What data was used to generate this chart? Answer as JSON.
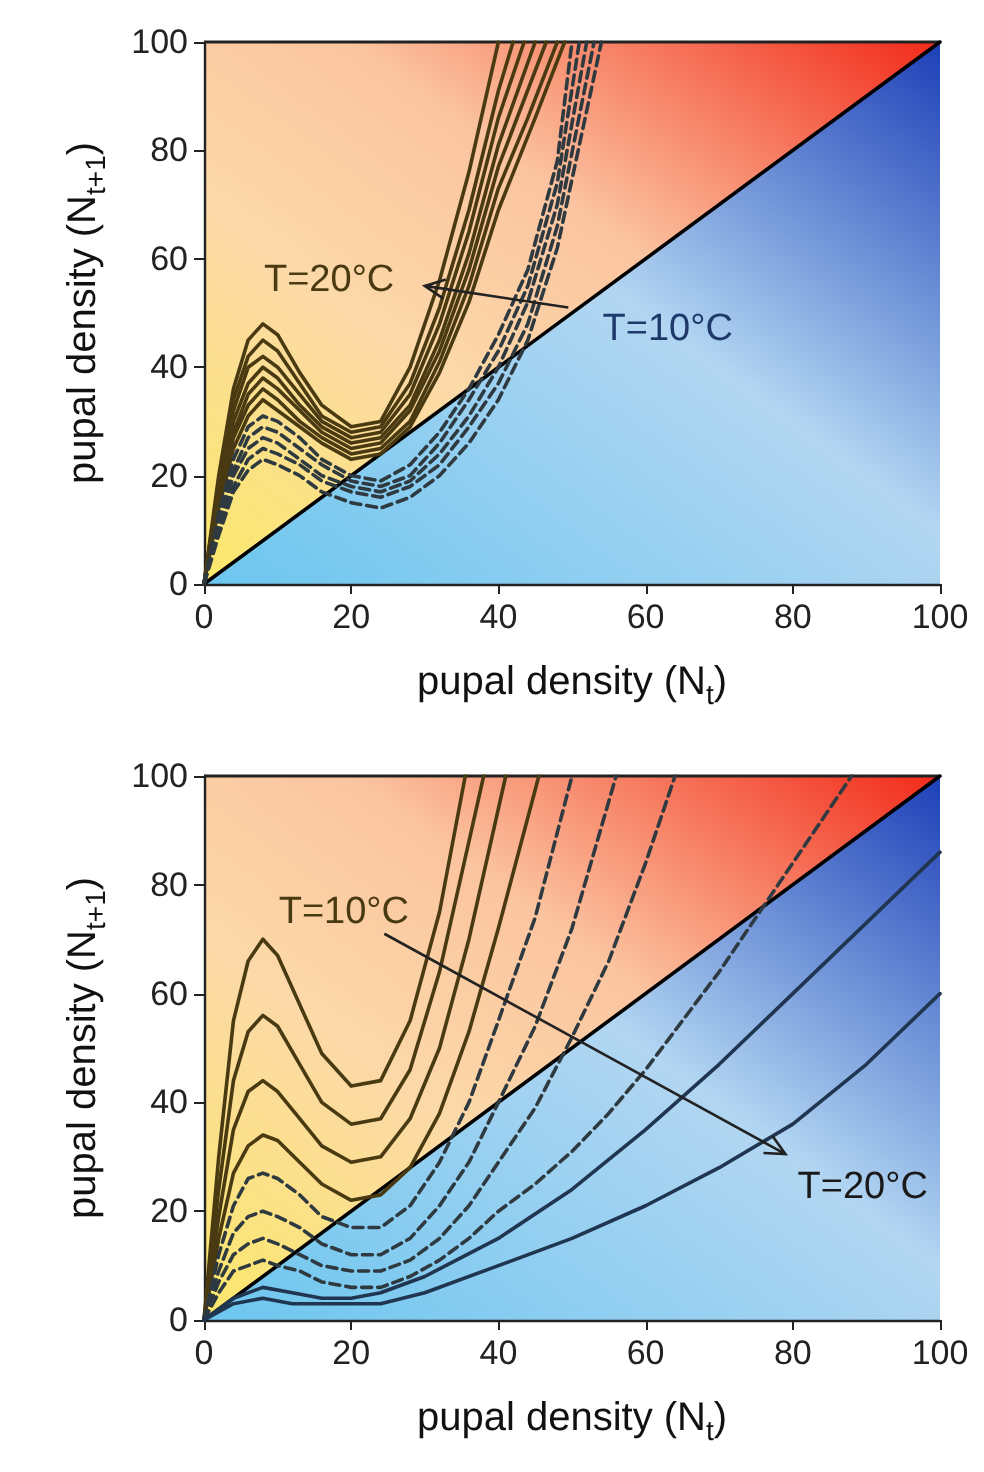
{
  "chart_data": [
    {
      "type": "line",
      "xlabel": "pupal density (N$_{t}$)",
      "ylabel": "pupal density (N$_{t+1}$)",
      "xlim": [
        0,
        100
      ],
      "ylim": [
        0,
        100
      ],
      "xticks": [
        0,
        20,
        40,
        60,
        80,
        100
      ],
      "yticks": [
        0,
        20,
        40,
        60,
        80,
        100
      ],
      "grid": false,
      "marker": "none",
      "annotations": [
        {
          "text": "T=20°C",
          "x": 30,
          "y": 55
        },
        {
          "text": "T=10°C",
          "x": 49.5,
          "y": 51
        }
      ],
      "series": [
        {
          "color": "#000000",
          "x": [
            0,
            100
          ],
          "values": [
            0,
            100
          ]
        },
        {
          "color": "#4a3a12",
          "x": [
            0,
            2,
            4,
            6,
            8,
            10,
            13,
            16,
            20,
            24,
            28,
            32,
            36,
            40
          ],
          "values": [
            0,
            20,
            36,
            45,
            48,
            46,
            39,
            33,
            29,
            30,
            40,
            56,
            76,
            100
          ]
        },
        {
          "color": "#4a3a12",
          "x": [
            0,
            2,
            4,
            6,
            8,
            10,
            13,
            16,
            20,
            24,
            28,
            32,
            36,
            40,
            42
          ],
          "values": [
            0,
            19,
            34,
            42,
            45,
            43,
            37,
            31,
            28,
            29,
            37,
            51,
            69,
            91,
            100
          ]
        },
        {
          "color": "#4a3a12",
          "x": [
            0,
            2,
            4,
            6,
            8,
            10,
            13,
            16,
            20,
            24,
            28,
            32,
            36,
            40,
            43.5
          ],
          "values": [
            0,
            18,
            32,
            40,
            42,
            40,
            35,
            30,
            27,
            28,
            35,
            48,
            65,
            86,
            100
          ]
        },
        {
          "color": "#4a3a12",
          "x": [
            0,
            2,
            4,
            6,
            8,
            10,
            13,
            16,
            20,
            24,
            28,
            32,
            36,
            40,
            45
          ],
          "values": [
            0,
            17,
            30,
            37,
            40,
            38,
            33,
            29,
            26,
            27,
            33,
            45,
            61,
            81,
            100
          ]
        },
        {
          "color": "#4a3a12",
          "x": [
            0,
            2,
            4,
            6,
            8,
            10,
            13,
            16,
            20,
            24,
            28,
            32,
            36,
            40,
            46.5
          ],
          "values": [
            0,
            16,
            28,
            35,
            38,
            36,
            32,
            28,
            25,
            26,
            32,
            43,
            58,
            77,
            100
          ]
        },
        {
          "color": "#4a3a12",
          "x": [
            0,
            2,
            4,
            6,
            8,
            10,
            13,
            16,
            20,
            24,
            28,
            32,
            36,
            40,
            44,
            48
          ],
          "values": [
            0,
            15,
            27,
            33,
            36,
            34,
            30,
            27,
            24,
            25,
            30,
            41,
            55,
            73,
            86,
            100
          ]
        },
        {
          "color": "#4a3a12",
          "x": [
            0,
            2,
            4,
            6,
            8,
            10,
            13,
            16,
            20,
            24,
            28,
            32,
            36,
            40,
            45,
            49
          ],
          "values": [
            0,
            14,
            25,
            31,
            34,
            32,
            29,
            26,
            23,
            24,
            29,
            39,
            52,
            69,
            86,
            100
          ]
        },
        {
          "color": "#2e3a40",
          "line_style": "dashed",
          "x": [
            0,
            2,
            4,
            6,
            8,
            10,
            13,
            16,
            20,
            24,
            28,
            32,
            36,
            40,
            44,
            48,
            50
          ],
          "values": [
            0,
            13,
            23,
            29,
            31,
            30,
            27,
            23,
            20,
            19,
            22,
            28,
            36,
            46,
            58,
            78,
            100
          ]
        },
        {
          "color": "#2e3a40",
          "line_style": "dashed",
          "x": [
            0,
            2,
            4,
            6,
            8,
            10,
            13,
            16,
            20,
            24,
            28,
            32,
            36,
            40,
            44,
            48,
            51
          ],
          "values": [
            0,
            12,
            21,
            27,
            29,
            28,
            25,
            22,
            19,
            18,
            20,
            26,
            34,
            43,
            55,
            74,
            100
          ]
        },
        {
          "color": "#2e3a40",
          "line_style": "dashed",
          "x": [
            0,
            2,
            4,
            6,
            8,
            10,
            13,
            16,
            20,
            24,
            28,
            32,
            36,
            40,
            44,
            48,
            52
          ],
          "values": [
            0,
            11,
            20,
            25,
            27,
            26,
            23,
            20,
            18,
            17,
            19,
            24,
            31,
            40,
            52,
            70,
            100
          ]
        },
        {
          "color": "#2e3a40",
          "line_style": "dashed",
          "x": [
            0,
            2,
            4,
            6,
            8,
            10,
            13,
            16,
            20,
            24,
            28,
            32,
            36,
            40,
            44,
            48,
            53
          ],
          "values": [
            0,
            10,
            18,
            23,
            25,
            24,
            22,
            19,
            17,
            16,
            18,
            22,
            29,
            37,
            48,
            66,
            100
          ]
        },
        {
          "color": "#2e3a40",
          "line_style": "dashed",
          "x": [
            0,
            2,
            4,
            6,
            8,
            10,
            13,
            16,
            20,
            24,
            28,
            32,
            36,
            40,
            44,
            48,
            54
          ],
          "values": [
            0,
            9,
            17,
            21,
            23,
            22,
            20,
            17,
            15,
            14,
            16,
            20,
            26,
            34,
            45,
            62,
            100
          ]
        }
      ]
    },
    {
      "type": "line",
      "xlabel": "pupal density (N$_{t}$)",
      "ylabel": "pupal density (N$_{t+1}$)",
      "xlim": [
        0,
        100
      ],
      "ylim": [
        0,
        100
      ],
      "xticks": [
        0,
        20,
        40,
        60,
        80,
        100
      ],
      "yticks": [
        0,
        20,
        40,
        60,
        80,
        100
      ],
      "grid": false,
      "marker": "none",
      "annotations": [
        "T=10°C",
        "T=20°C"
      ],
      "series": [
        {
          "color": "#000000",
          "x": [
            0,
            100
          ],
          "values": [
            0,
            100
          ]
        },
        {
          "color": "#4a3a12",
          "x": [
            0,
            2,
            4,
            6,
            8,
            10,
            13,
            16,
            20,
            24,
            28,
            32,
            35.5
          ],
          "values": [
            0,
            30,
            55,
            66,
            70,
            67,
            58,
            49,
            43,
            44,
            55,
            75,
            100
          ]
        },
        {
          "color": "#4a3a12",
          "x": [
            0,
            2,
            4,
            6,
            8,
            10,
            13,
            16,
            20,
            24,
            28,
            32,
            36,
            38
          ],
          "values": [
            0,
            24,
            44,
            53,
            56,
            54,
            47,
            40,
            36,
            37,
            46,
            64,
            88,
            100
          ]
        },
        {
          "color": "#4a3a12",
          "x": [
            0,
            2,
            4,
            6,
            8,
            10,
            13,
            16,
            20,
            24,
            28,
            32,
            36,
            41
          ],
          "values": [
            0,
            19,
            35,
            42,
            44,
            42,
            37,
            32,
            29,
            30,
            37,
            50,
            70,
            100
          ]
        },
        {
          "color": "#4a3a12",
          "x": [
            0,
            2,
            4,
            6,
            8,
            10,
            13,
            16,
            20,
            24,
            28,
            32,
            36,
            40,
            45.5
          ],
          "values": [
            0,
            15,
            27,
            32,
            34,
            33,
            29,
            25,
            22,
            23,
            28,
            38,
            53,
            72,
            100
          ]
        },
        {
          "color": "#2e3a40",
          "line_style": "dashed",
          "x": [
            0,
            2,
            4,
            6,
            8,
            10,
            13,
            16,
            20,
            24,
            28,
            32,
            36,
            40,
            45,
            50
          ],
          "values": [
            0,
            12,
            21,
            26,
            27,
            26,
            23,
            19,
            17,
            17,
            21,
            29,
            40,
            55,
            74,
            100
          ]
        },
        {
          "color": "#2e3a40",
          "line_style": "dashed",
          "x": [
            0,
            2,
            4,
            6,
            8,
            10,
            13,
            16,
            20,
            24,
            28,
            32,
            36,
            40,
            45,
            50,
            56
          ],
          "values": [
            0,
            9,
            16,
            19,
            20,
            19,
            17,
            14,
            12,
            12,
            15,
            21,
            29,
            40,
            54,
            72,
            100
          ]
        },
        {
          "color": "#2e3a40",
          "line_style": "dashed",
          "x": [
            0,
            2,
            4,
            6,
            8,
            10,
            13,
            16,
            20,
            24,
            28,
            32,
            36,
            40,
            45,
            50,
            55,
            60,
            64
          ],
          "values": [
            0,
            7,
            12,
            14,
            15,
            14,
            12,
            10,
            9,
            9,
            11,
            15,
            21,
            29,
            39,
            52,
            66,
            84,
            100
          ]
        },
        {
          "color": "#2e3a40",
          "line_style": "dashed",
          "x": [
            0,
            2,
            4,
            6,
            8,
            10,
            13,
            16,
            20,
            24,
            28,
            32,
            36,
            40,
            45,
            50,
            55,
            60,
            65,
            70,
            76,
            82,
            88
          ],
          "values": [
            0,
            5,
            9,
            10,
            11,
            10,
            9,
            7,
            6,
            6,
            8,
            11,
            15,
            20,
            25,
            31,
            38,
            46,
            55,
            64,
            76,
            88,
            100
          ]
        },
        {
          "color": "#1f3550",
          "x": [
            0,
            4,
            8,
            12,
            16,
            20,
            24,
            30,
            40,
            50,
            60,
            70,
            80,
            90,
            100
          ],
          "values": [
            0,
            4,
            6,
            5,
            4,
            4,
            5,
            8,
            15,
            24,
            35,
            47,
            60,
            73,
            86
          ]
        },
        {
          "color": "#1f3550",
          "x": [
            0,
            4,
            8,
            12,
            16,
            20,
            24,
            30,
            40,
            50,
            60,
            70,
            80,
            90,
            100
          ],
          "values": [
            0,
            3,
            4,
            3,
            3,
            3,
            3,
            5,
            10,
            15,
            21,
            28,
            36,
            47,
            60
          ]
        }
      ]
    }
  ]
}
